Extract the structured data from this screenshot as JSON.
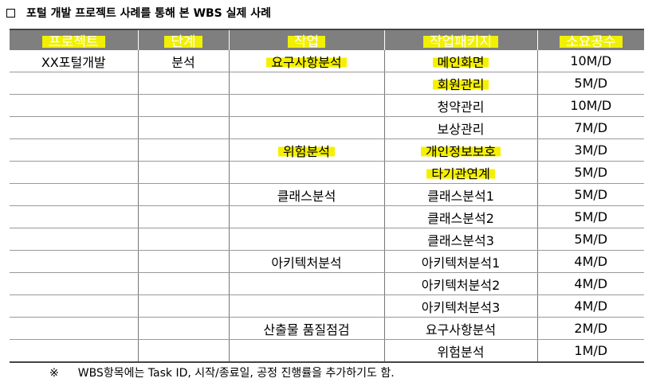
{
  "title": "포털 개발 프로젝트 사례를 통해 본 WBS 실제 사례",
  "headers": [
    "프로젝트",
    "단계",
    "작업",
    "작업패키지",
    "소요공수"
  ],
  "rows": [
    [
      "XX포털개발",
      "분석",
      "요구사항분석",
      "메인화면",
      "10M/D"
    ],
    [
      "",
      "",
      "",
      "회원관리",
      "5M/D"
    ],
    [
      "",
      "",
      "",
      "청약관리",
      "10M/D"
    ],
    [
      "",
      "",
      "",
      "보상관리",
      "7M/D"
    ],
    [
      "",
      "",
      "위험분석",
      "개인정보보호",
      "3M/D"
    ],
    [
      "",
      "",
      "",
      "타기관연계",
      "5M/D"
    ],
    [
      "",
      "",
      "클래스분석",
      "클래스분석1",
      "5M/D"
    ],
    [
      "",
      "",
      "",
      "클래스분석2",
      "5M/D"
    ],
    [
      "",
      "",
      "",
      "클래스분석3",
      "5M/D"
    ],
    [
      "",
      "",
      "아키텍처분석",
      "아키텍처분석1",
      "4M/D"
    ],
    [
      "",
      "",
      "",
      "아키텍처분석2",
      "4M/D"
    ],
    [
      "",
      "",
      "",
      "아키텍처분석3",
      "4M/D"
    ],
    [
      "",
      "",
      "산출물 품질점검",
      "요구사항분석",
      "2M/D"
    ],
    [
      "",
      "",
      "",
      "위험분석",
      "1M/D"
    ]
  ],
  "note_mark": "※",
  "note": "WBS항목에는 Task ID, 시작/종료일, 공정 진행률을 추가하기도 함.",
  "highlight_color": "#f5f000",
  "header_bg": "#7f7f7f"
}
